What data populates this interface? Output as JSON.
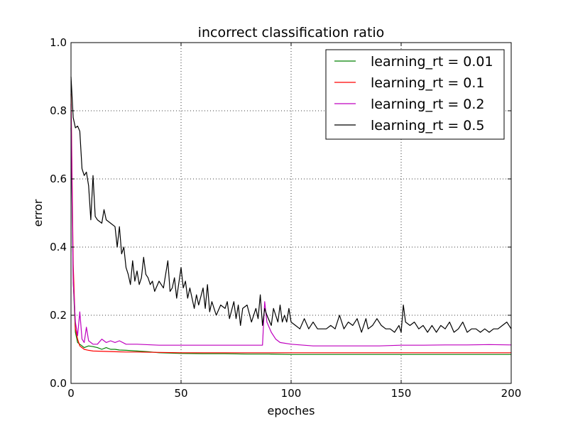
{
  "chart_data": {
    "type": "line",
    "title": "incorrect classification ratio",
    "xlabel": "epoches",
    "ylabel": "error",
    "xlim": [
      0,
      200
    ],
    "ylim": [
      0.0,
      1.0
    ],
    "xticks": [
      "0",
      "50",
      "100",
      "150",
      "200"
    ],
    "yticks": [
      "0.0",
      "0.2",
      "0.4",
      "0.6",
      "0.8",
      "1.0"
    ],
    "grid": true,
    "legend_position": "top-right",
    "series": [
      {
        "name": "learning_rt = 0.01",
        "color": "#008000",
        "points": [
          [
            0,
            0.75
          ],
          [
            1,
            0.3
          ],
          [
            2,
            0.15
          ],
          [
            3,
            0.12
          ],
          [
            4,
            0.115
          ],
          [
            5,
            0.11
          ],
          [
            6,
            0.105
          ],
          [
            8,
            0.11
          ],
          [
            10,
            0.108
          ],
          [
            12,
            0.105
          ],
          [
            14,
            0.1
          ],
          [
            16,
            0.105
          ],
          [
            18,
            0.1
          ],
          [
            20,
            0.1
          ],
          [
            22,
            0.098
          ],
          [
            25,
            0.097
          ],
          [
            30,
            0.095
          ],
          [
            35,
            0.093
          ],
          [
            40,
            0.09
          ],
          [
            50,
            0.088
          ],
          [
            60,
            0.087
          ],
          [
            70,
            0.087
          ],
          [
            80,
            0.086
          ],
          [
            90,
            0.086
          ],
          [
            100,
            0.085
          ],
          [
            120,
            0.085
          ],
          [
            140,
            0.085
          ],
          [
            160,
            0.085
          ],
          [
            180,
            0.085
          ],
          [
            200,
            0.085
          ]
        ]
      },
      {
        "name": "learning_rt = 0.1",
        "color": "#ff0000",
        "points": [
          [
            0,
            0.85
          ],
          [
            1,
            0.35
          ],
          [
            2,
            0.16
          ],
          [
            3,
            0.13
          ],
          [
            4,
            0.11
          ],
          [
            5,
            0.105
          ],
          [
            6,
            0.1
          ],
          [
            8,
            0.097
          ],
          [
            10,
            0.095
          ],
          [
            15,
            0.094
          ],
          [
            20,
            0.093
          ],
          [
            25,
            0.092
          ],
          [
            30,
            0.092
          ],
          [
            40,
            0.091
          ],
          [
            50,
            0.09
          ],
          [
            60,
            0.09
          ],
          [
            70,
            0.09
          ],
          [
            80,
            0.09
          ],
          [
            90,
            0.09
          ],
          [
            100,
            0.09
          ],
          [
            120,
            0.09
          ],
          [
            140,
            0.09
          ],
          [
            160,
            0.09
          ],
          [
            180,
            0.09
          ],
          [
            200,
            0.09
          ]
        ]
      },
      {
        "name": "learning_rt = 0.2",
        "color": "#bf00bf",
        "points": [
          [
            0,
            0.82
          ],
          [
            1,
            0.3
          ],
          [
            2,
            0.18
          ],
          [
            3,
            0.14
          ],
          [
            4,
            0.21
          ],
          [
            5,
            0.13
          ],
          [
            6,
            0.12
          ],
          [
            7,
            0.165
          ],
          [
            8,
            0.125
          ],
          [
            9,
            0.12
          ],
          [
            10,
            0.115
          ],
          [
            12,
            0.115
          ],
          [
            14,
            0.13
          ],
          [
            16,
            0.12
          ],
          [
            18,
            0.125
          ],
          [
            20,
            0.12
          ],
          [
            22,
            0.125
          ],
          [
            25,
            0.115
          ],
          [
            30,
            0.115
          ],
          [
            40,
            0.112
          ],
          [
            50,
            0.112
          ],
          [
            60,
            0.112
          ],
          [
            70,
            0.112
          ],
          [
            80,
            0.112
          ],
          [
            87,
            0.112
          ],
          [
            88,
            0.24
          ],
          [
            89,
            0.18
          ],
          [
            91,
            0.15
          ],
          [
            93,
            0.13
          ],
          [
            95,
            0.12
          ],
          [
            100,
            0.115
          ],
          [
            110,
            0.11
          ],
          [
            120,
            0.11
          ],
          [
            130,
            0.11
          ],
          [
            140,
            0.11
          ],
          [
            150,
            0.112
          ],
          [
            160,
            0.112
          ],
          [
            170,
            0.113
          ],
          [
            180,
            0.113
          ],
          [
            190,
            0.114
          ],
          [
            200,
            0.113
          ]
        ]
      },
      {
        "name": "learning_rt = 0.5",
        "color": "#000000",
        "points": [
          [
            0,
            0.9
          ],
          [
            1,
            0.78
          ],
          [
            2,
            0.75
          ],
          [
            3,
            0.755
          ],
          [
            4,
            0.74
          ],
          [
            5,
            0.63
          ],
          [
            6,
            0.61
          ],
          [
            7,
            0.62
          ],
          [
            8,
            0.58
          ],
          [
            9,
            0.48
          ],
          [
            10,
            0.61
          ],
          [
            11,
            0.49
          ],
          [
            12,
            0.48
          ],
          [
            13,
            0.475
          ],
          [
            14,
            0.47
          ],
          [
            15,
            0.51
          ],
          [
            16,
            0.48
          ],
          [
            18,
            0.47
          ],
          [
            20,
            0.46
          ],
          [
            21,
            0.4
          ],
          [
            22,
            0.46
          ],
          [
            23,
            0.38
          ],
          [
            24,
            0.4
          ],
          [
            25,
            0.34
          ],
          [
            26,
            0.32
          ],
          [
            27,
            0.29
          ],
          [
            28,
            0.36
          ],
          [
            29,
            0.3
          ],
          [
            30,
            0.33
          ],
          [
            31,
            0.29
          ],
          [
            32,
            0.31
          ],
          [
            33,
            0.37
          ],
          [
            34,
            0.32
          ],
          [
            35,
            0.31
          ],
          [
            36,
            0.29
          ],
          [
            37,
            0.3
          ],
          [
            38,
            0.27
          ],
          [
            40,
            0.3
          ],
          [
            42,
            0.28
          ],
          [
            44,
            0.36
          ],
          [
            45,
            0.27
          ],
          [
            46,
            0.28
          ],
          [
            47,
            0.31
          ],
          [
            48,
            0.25
          ],
          [
            50,
            0.34
          ],
          [
            51,
            0.28
          ],
          [
            52,
            0.3
          ],
          [
            53,
            0.25
          ],
          [
            54,
            0.28
          ],
          [
            56,
            0.22
          ],
          [
            57,
            0.26
          ],
          [
            58,
            0.23
          ],
          [
            60,
            0.28
          ],
          [
            61,
            0.22
          ],
          [
            62,
            0.29
          ],
          [
            63,
            0.21
          ],
          [
            64,
            0.24
          ],
          [
            66,
            0.2
          ],
          [
            68,
            0.23
          ],
          [
            70,
            0.22
          ],
          [
            71,
            0.24
          ],
          [
            72,
            0.19
          ],
          [
            74,
            0.24
          ],
          [
            75,
            0.19
          ],
          [
            76,
            0.23
          ],
          [
            77,
            0.17
          ],
          [
            78,
            0.22
          ],
          [
            80,
            0.23
          ],
          [
            82,
            0.18
          ],
          [
            84,
            0.22
          ],
          [
            85,
            0.19
          ],
          [
            86,
            0.26
          ],
          [
            87,
            0.17
          ],
          [
            88,
            0.22
          ],
          [
            89,
            0.2
          ],
          [
            91,
            0.17
          ],
          [
            92,
            0.22
          ],
          [
            94,
            0.18
          ],
          [
            95,
            0.23
          ],
          [
            96,
            0.18
          ],
          [
            97,
            0.2
          ],
          [
            98,
            0.18
          ],
          [
            99,
            0.22
          ],
          [
            100,
            0.18
          ],
          [
            102,
            0.17
          ],
          [
            104,
            0.16
          ],
          [
            106,
            0.19
          ],
          [
            108,
            0.16
          ],
          [
            110,
            0.18
          ],
          [
            112,
            0.16
          ],
          [
            116,
            0.16
          ],
          [
            118,
            0.17
          ],
          [
            120,
            0.16
          ],
          [
            122,
            0.2
          ],
          [
            124,
            0.16
          ],
          [
            126,
            0.18
          ],
          [
            128,
            0.17
          ],
          [
            130,
            0.19
          ],
          [
            132,
            0.15
          ],
          [
            134,
            0.19
          ],
          [
            135,
            0.16
          ],
          [
            137,
            0.17
          ],
          [
            139,
            0.19
          ],
          [
            141,
            0.17
          ],
          [
            143,
            0.16
          ],
          [
            145,
            0.16
          ],
          [
            147,
            0.15
          ],
          [
            149,
            0.17
          ],
          [
            150,
            0.15
          ],
          [
            151,
            0.23
          ],
          [
            152,
            0.18
          ],
          [
            154,
            0.17
          ],
          [
            156,
            0.18
          ],
          [
            158,
            0.16
          ],
          [
            160,
            0.17
          ],
          [
            162,
            0.15
          ],
          [
            164,
            0.17
          ],
          [
            166,
            0.15
          ],
          [
            168,
            0.17
          ],
          [
            170,
            0.16
          ],
          [
            172,
            0.18
          ],
          [
            174,
            0.15
          ],
          [
            176,
            0.16
          ],
          [
            178,
            0.18
          ],
          [
            180,
            0.15
          ],
          [
            182,
            0.16
          ],
          [
            184,
            0.16
          ],
          [
            186,
            0.15
          ],
          [
            188,
            0.16
          ],
          [
            190,
            0.15
          ],
          [
            192,
            0.16
          ],
          [
            194,
            0.16
          ],
          [
            196,
            0.17
          ],
          [
            198,
            0.18
          ],
          [
            200,
            0.16
          ]
        ]
      }
    ]
  }
}
